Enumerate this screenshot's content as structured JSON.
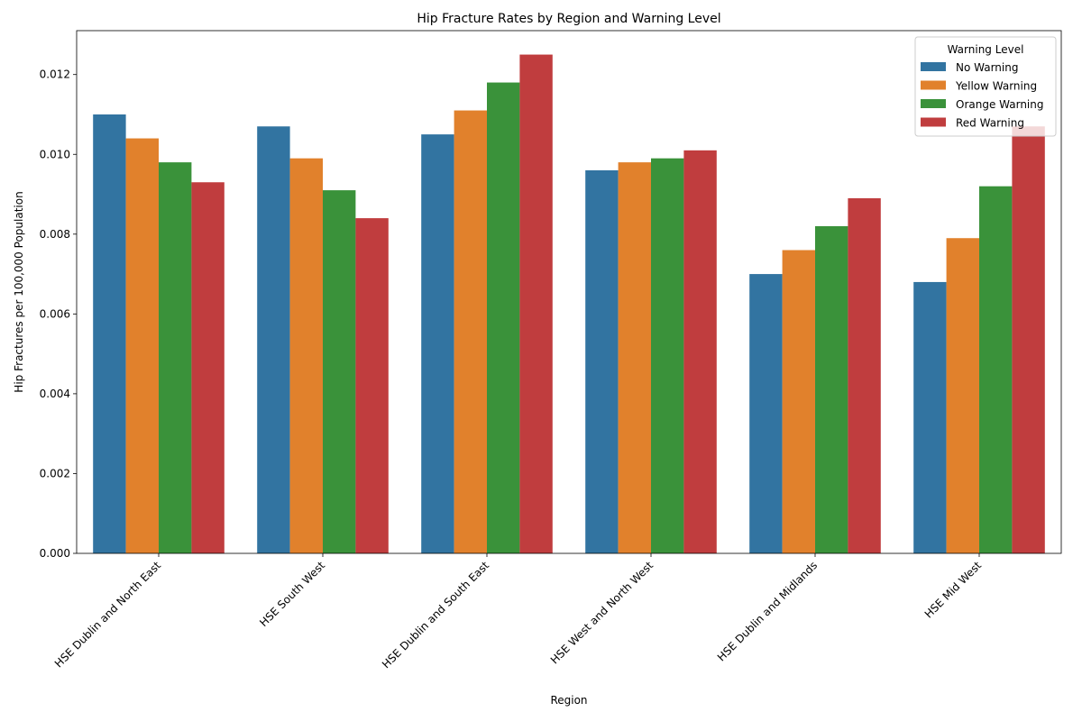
{
  "chart_data": {
    "type": "bar",
    "title": "Hip Fracture Rates by Region and Warning Level",
    "xlabel": "Region",
    "ylabel": "Hip Fractures per 100,000 Population",
    "ylim": [
      0,
      0.0131
    ],
    "yticks": [
      "0.000",
      "0.002",
      "0.004",
      "0.006",
      "0.008",
      "0.010",
      "0.012"
    ],
    "ytick_values": [
      0,
      0.002,
      0.004,
      0.006,
      0.008,
      0.01,
      0.012
    ],
    "grid": false,
    "legend": {
      "title": "Warning Level",
      "placement": "top-right"
    },
    "categories": [
      "HSE Dublin and North East",
      "HSE South West",
      "HSE Dublin and South East",
      "HSE West and North West",
      "HSE Dublin and Midlands",
      "HSE Mid West"
    ],
    "series": [
      {
        "name": "No Warning",
        "color": "#3274a1",
        "values": [
          0.011,
          0.0107,
          0.0105,
          0.0096,
          0.007,
          0.0068
        ]
      },
      {
        "name": "Yellow Warning",
        "color": "#e1812c",
        "values": [
          0.0104,
          0.0099,
          0.0111,
          0.0098,
          0.0076,
          0.0079
        ]
      },
      {
        "name": "Orange Warning",
        "color": "#3a923a",
        "values": [
          0.0098,
          0.0091,
          0.0118,
          0.0099,
          0.0082,
          0.0092
        ]
      },
      {
        "name": "Red Warning",
        "color": "#c03d3e",
        "values": [
          0.0093,
          0.0084,
          0.0125,
          0.0101,
          0.0089,
          0.0107
        ]
      }
    ]
  }
}
